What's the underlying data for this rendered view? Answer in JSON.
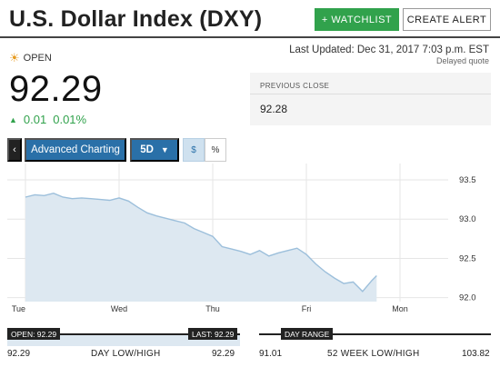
{
  "header": {
    "title": "U.S. Dollar Index (DXY)",
    "watchlist_label": "+ WATCHLIST",
    "alert_label": "CREATE ALERT"
  },
  "status": {
    "icon": "sun-icon",
    "label": "OPEN",
    "last_updated": "Last Updated: Dec 31, 2017 7:03 p.m. EST",
    "delayed": "Delayed quote"
  },
  "quote": {
    "price": "92.29",
    "change": "0.01",
    "change_pct": "0.01%",
    "direction_icon": "up-triangle-icon",
    "up_color": "#31a24c"
  },
  "previous_close": {
    "label": "PREVIOUS CLOSE",
    "value": "92.28"
  },
  "toolbar": {
    "back_icon": "chevron-left-icon",
    "advanced_label": "Advanced Charting",
    "period_label": "5D",
    "dollar_label": "$",
    "percent_label": "%",
    "accent": "#2a70a8"
  },
  "chart_data": {
    "type": "area",
    "x_ticks": [
      "Tue",
      "Wed",
      "Thu",
      "Fri",
      "Mon"
    ],
    "y_ticks": [
      93.5,
      93.0,
      92.5,
      92.0
    ],
    "ylim": [
      91.95,
      93.65
    ],
    "x": [
      0,
      0.1,
      0.2,
      0.3,
      0.4,
      0.5,
      0.6,
      0.7,
      0.8,
      0.9,
      1.0,
      1.1,
      1.2,
      1.3,
      1.4,
      1.5,
      1.6,
      1.7,
      1.8,
      1.9,
      2.0,
      2.1,
      2.2,
      2.3,
      2.4,
      2.5,
      2.6,
      2.7,
      2.8,
      2.9,
      3.0,
      3.1,
      3.2,
      3.3,
      3.4,
      3.5,
      3.6,
      3.7,
      3.75
    ],
    "values": [
      93.28,
      93.31,
      93.3,
      93.33,
      93.28,
      93.26,
      93.27,
      93.26,
      93.25,
      93.24,
      93.27,
      93.23,
      93.15,
      93.08,
      93.04,
      93.01,
      92.98,
      92.95,
      92.88,
      92.83,
      92.78,
      92.65,
      92.62,
      92.59,
      92.55,
      92.6,
      92.53,
      92.57,
      92.6,
      92.63,
      92.55,
      92.43,
      92.33,
      92.25,
      92.18,
      92.2,
      92.08,
      92.22,
      92.28
    ],
    "line_color": "#9cbfdb",
    "fill_color": "#dde8f1",
    "grid": true
  },
  "day_range": {
    "open_tag": "OPEN: 92.29",
    "last_tag": "LAST: 92.29",
    "low": "92.29",
    "label": "DAY LOW/HIGH",
    "high": "92.29"
  },
  "week_range": {
    "tag": "DAY RANGE",
    "low": "91.01",
    "label": "52 WEEK LOW/HIGH",
    "high": "103.82"
  }
}
